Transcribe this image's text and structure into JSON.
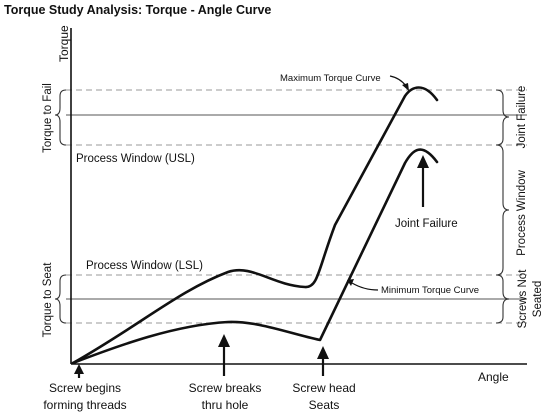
{
  "title": "Torque Study Analysis: Torque - Angle Curve",
  "axes": {
    "y_label": "Torque",
    "x_label": "Angle"
  },
  "left_regions": {
    "torque_to_fail": "Torque to Fail",
    "torque_to_seat": "Torque to Seat"
  },
  "right_regions": {
    "joint_failure": "Joint Failure",
    "process_window": "Process Window",
    "screws_not_seated_line1": "Screws Not",
    "screws_not_seated_line2": "Seated"
  },
  "annotations": {
    "process_window_usl": "Process Window (USL)",
    "process_window_lsl": "Process Window (LSL)",
    "maximum_torque_curve": "Maximum Torque Curve",
    "minimum_torque_curve": "Minimum Torque Curve",
    "joint_failure": "Joint Failure"
  },
  "bottom_labels": {
    "screw_begins_line1": "Screw begins",
    "screw_begins_line2": "forming threads",
    "screw_breaks_line1": "Screw breaks",
    "screw_breaks_line2": "thru hole",
    "screw_head_line1": "Screw head",
    "screw_head_line2": "Seats"
  }
}
